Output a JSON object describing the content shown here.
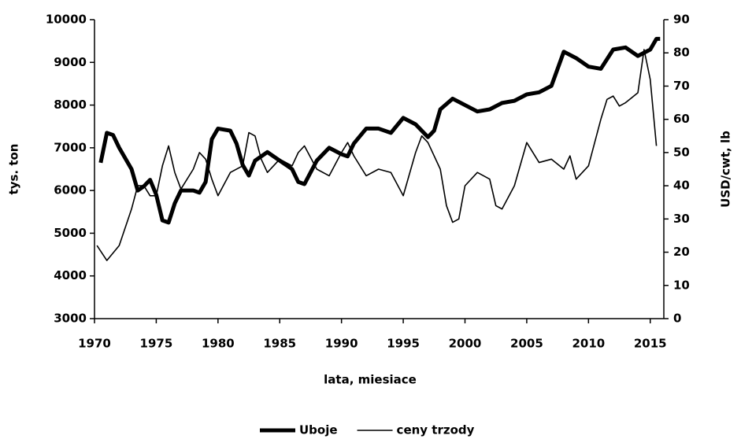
{
  "chart_data": {
    "type": "line",
    "xlabel": "lata, miesiace",
    "ylabel": "tys. ton",
    "y2label": "USD/cwt, lb",
    "xlim": [
      1970,
      2016.1
    ],
    "xticks": [
      1970,
      1975,
      1980,
      1985,
      1990,
      1995,
      2000,
      2005,
      2010,
      2015
    ],
    "ylim": [
      3000,
      10000
    ],
    "yticks": [
      3000,
      4000,
      5000,
      6000,
      7000,
      8000,
      9000,
      10000
    ],
    "y2lim": [
      0,
      90
    ],
    "y2ticks": [
      0,
      10,
      20,
      30,
      40,
      50,
      60,
      70,
      80,
      90
    ],
    "legend": "bottom",
    "series": [
      {
        "name": "Uboje",
        "color": "#000000",
        "width": 5,
        "x": [
          1970.5,
          1971,
          1971.5,
          1972,
          1973,
          1973.5,
          1974,
          1974.5,
          1975,
          1975.5,
          1976,
          1976.5,
          1977,
          1978,
          1978.5,
          1979,
          1979.5,
          1980,
          1981,
          1981.5,
          1982,
          1982.5,
          1983,
          1984,
          1985,
          1986,
          1986.5,
          1987,
          1988,
          1989,
          1990,
          1990.5,
          1991,
          1992,
          1993,
          1994,
          1995,
          1996,
          1997,
          1997.5,
          1998,
          1999,
          2000,
          2001,
          2002,
          2003,
          2004,
          2005,
          2006,
          2007,
          2008,
          2009,
          2010,
          2011,
          2012,
          2013,
          2014,
          2015,
          2015.5,
          2015.8
        ],
        "values": [
          6650,
          7350,
          7300,
          7000,
          6500,
          6000,
          6100,
          6250,
          5900,
          5300,
          5250,
          5700,
          6000,
          6000,
          5950,
          6200,
          7200,
          7450,
          7400,
          7100,
          6600,
          6350,
          6700,
          6900,
          6700,
          6500,
          6200,
          6150,
          6700,
          7000,
          6850,
          6800,
          7100,
          7450,
          7450,
          7350,
          7700,
          7550,
          7250,
          7400,
          7900,
          8150,
          8000,
          7850,
          7900,
          8050,
          8100,
          8250,
          8300,
          8450,
          9250,
          9100,
          8900,
          8850,
          9300,
          9350,
          9150,
          9300,
          9550,
          9550
        ]
      },
      {
        "name": "ceny trzody",
        "color": "#000000",
        "width": 1.6,
        "axis": "y2",
        "x": [
          1970.2,
          1971,
          1972,
          1973,
          1973.5,
          1974,
          1974.5,
          1975,
          1975.5,
          1976,
          1976.5,
          1977,
          1978,
          1978.5,
          1979,
          1979.5,
          1980,
          1981,
          1982,
          1982.5,
          1983,
          1983.5,
          1984,
          1985,
          1986,
          1986.5,
          1987,
          1988,
          1989,
          1990,
          1990.5,
          1991,
          1992,
          1993,
          1994,
          1995,
          1996,
          1996.5,
          1997,
          1998,
          1998.5,
          1999,
          1999.5,
          2000,
          2001,
          2002,
          2002.5,
          2003,
          2004,
          2005,
          2006,
          2007,
          2008,
          2008.5,
          2009,
          2010,
          2011,
          2011.5,
          2012,
          2012.5,
          2013,
          2014,
          2014.5,
          2015,
          2015.5
        ],
        "values": [
          22,
          17.5,
          22,
          33,
          40,
          40,
          37,
          37,
          46,
          52,
          44,
          39,
          45,
          50,
          48,
          42,
          37,
          44,
          46,
          56,
          55,
          48,
          44,
          48,
          46,
          50,
          52,
          45,
          43,
          50,
          53,
          49,
          43,
          45,
          44,
          37,
          50,
          55,
          53,
          45,
          34,
          29,
          30,
          40,
          44,
          42,
          34,
          33,
          40,
          53,
          47,
          48,
          45,
          49,
          42,
          46,
          60,
          66,
          67,
          64,
          65,
          68,
          81,
          72,
          52
        ]
      }
    ]
  }
}
